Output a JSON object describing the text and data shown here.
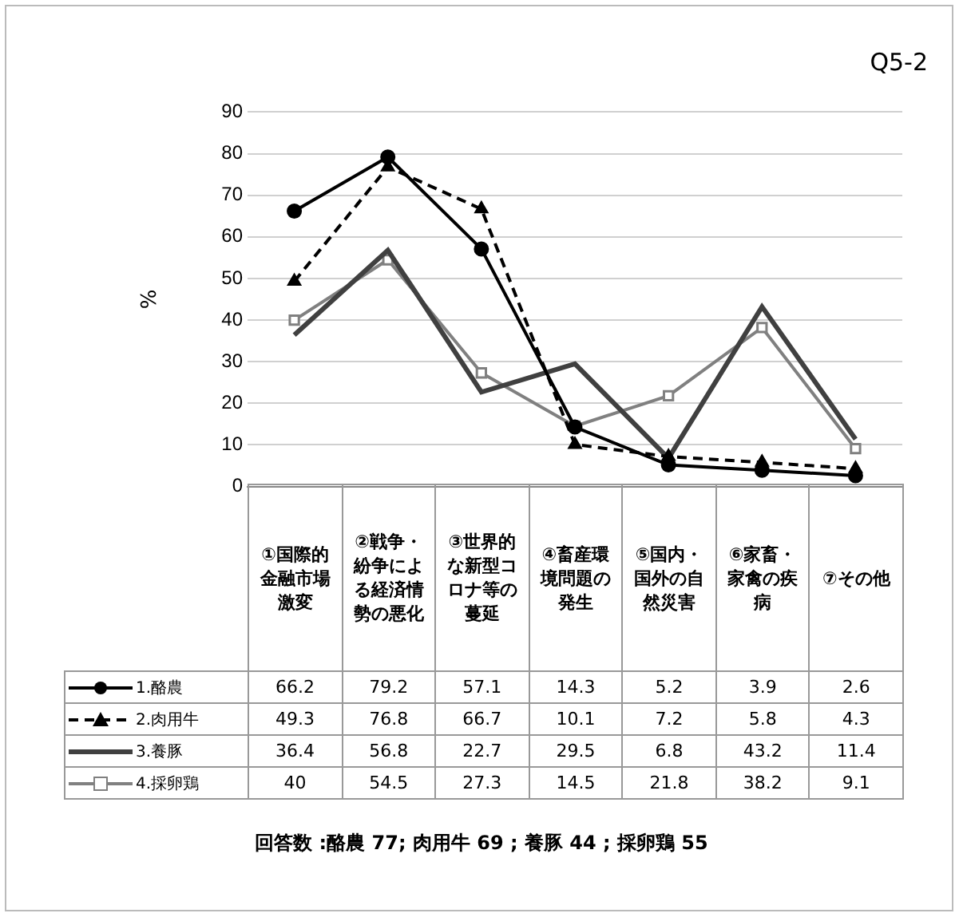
{
  "chart_data": {
    "type": "line",
    "title": "Q5-2",
    "ylabel": "%",
    "categories": [
      "①国際的金融市場激変",
      "②戦争・紛争による経済情勢の悪化",
      "③世界的な新型コロナ等の蔓延",
      "④畜産環境問題の発生",
      "⑤国内・国外の自然災害",
      "⑥家畜・家禽の疾病",
      "⑦その他"
    ],
    "series": [
      {
        "name": "1.酪農",
        "color": "#000000",
        "marker": "circle",
        "line_style": "solid",
        "values": [
          66.2,
          79.2,
          57.1,
          14.3,
          5.2,
          3.9,
          2.6
        ]
      },
      {
        "name": "2.肉用牛",
        "color": "#000000",
        "marker": "triangle",
        "line_style": "dashed",
        "values": [
          49.3,
          76.8,
          66.7,
          10.1,
          7.2,
          5.8,
          4.3
        ]
      },
      {
        "name": "3.養豚",
        "color": "#404040",
        "marker": "none",
        "line_style": "solid",
        "values": [
          36.4,
          56.8,
          22.7,
          29.5,
          6.8,
          43.2,
          11.4
        ]
      },
      {
        "name": "4.採卵鶏",
        "color": "#808080",
        "marker": "square",
        "line_style": "solid",
        "values": [
          40,
          54.5,
          27.3,
          14.5,
          21.8,
          38.2,
          9.1
        ]
      }
    ],
    "ylim": [
      0,
      90
    ],
    "yticks": [
      0,
      10,
      20,
      30,
      40,
      50,
      60,
      70,
      80,
      90
    ],
    "grid": "y",
    "legend": "bottom",
    "data_labels": true,
    "annotations": [
      "回答数 :酪農 77; 肉用牛 69 ; 養豚 44 ; 採卵鶏 55"
    ]
  }
}
